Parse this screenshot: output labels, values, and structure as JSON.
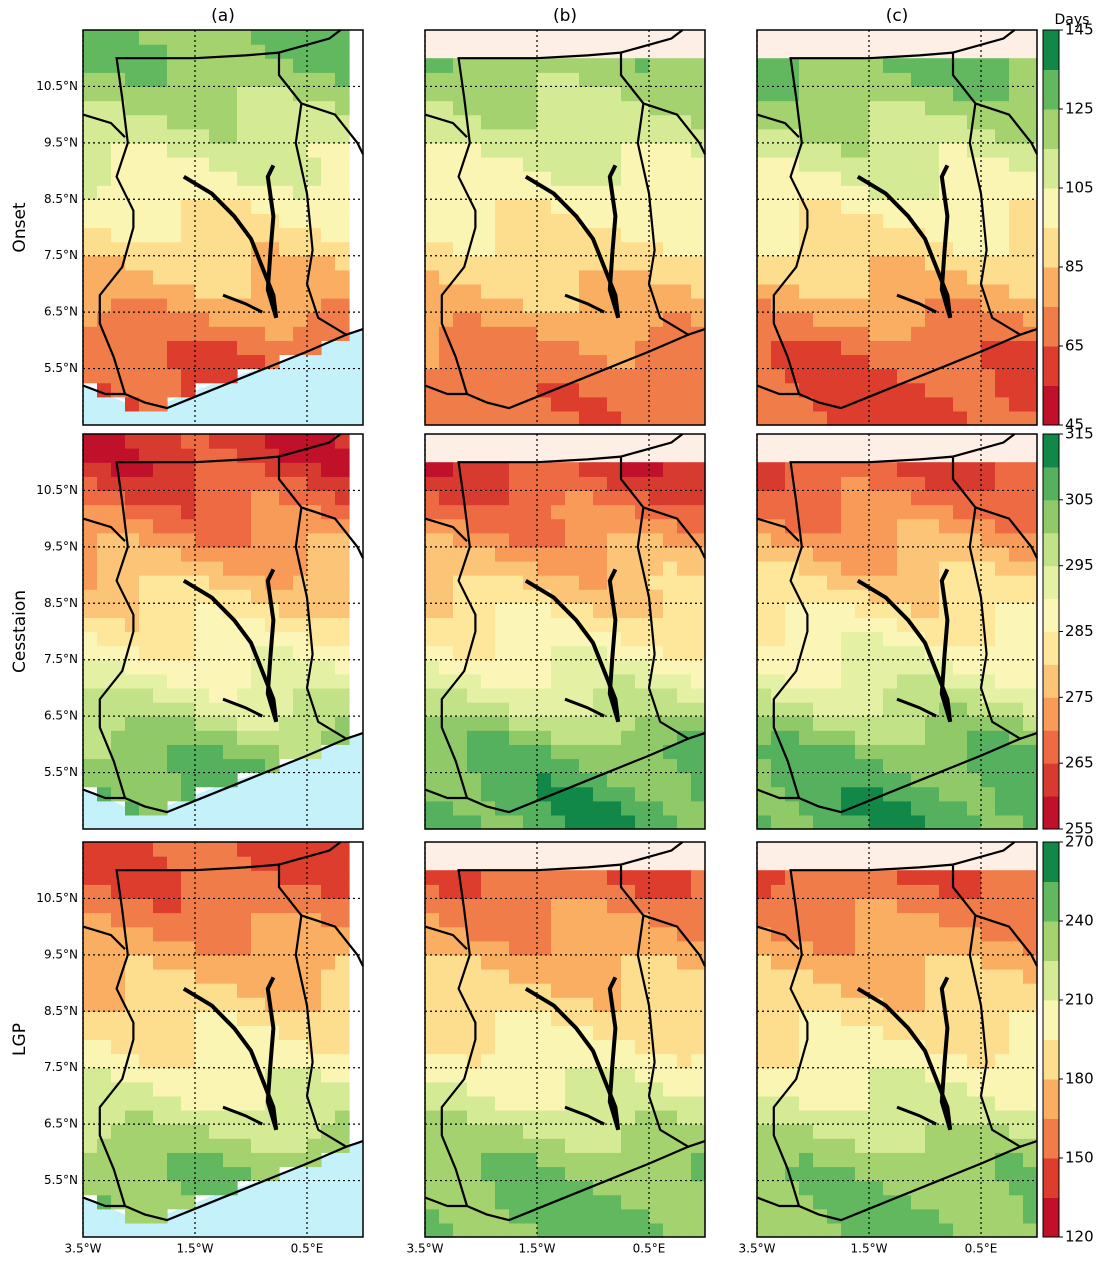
{
  "columns": [
    "(a)",
    "(b)",
    "(c)"
  ],
  "colorbar_label": "Days",
  "rows": [
    {
      "label": "Onset",
      "colorbar": {
        "lim": [
          45,
          145
        ],
        "ticks": [
          45,
          65,
          85,
          105,
          125,
          145
        ],
        "colors": [
          "#c0102a",
          "#dc3d2d",
          "#f07c4a",
          "#f9ae62",
          "#fdde8e",
          "#fbf5b4",
          "#d4ea94",
          "#a4d26e",
          "#62b85f",
          "#118847"
        ]
      }
    },
    {
      "label": "Cesstaion",
      "colorbar": {
        "lim": [
          255,
          315
        ],
        "ticks": [
          255,
          265,
          275,
          285,
          295,
          305,
          315
        ],
        "colors": [
          "#c0102a",
          "#d73a2e",
          "#ed6a43",
          "#f89a58",
          "#fcc477",
          "#fee79a",
          "#fbf6b8",
          "#e4f1a4",
          "#c1e287",
          "#90ca68",
          "#55b15d",
          "#118847"
        ]
      }
    },
    {
      "label": "LGP",
      "colorbar": {
        "lim": [
          120,
          270
        ],
        "ticks": [
          120,
          150,
          180,
          210,
          240,
          270
        ],
        "colors": [
          "#c0102a",
          "#dc3d2d",
          "#f07c4a",
          "#f9ae62",
          "#fdde8e",
          "#fbf5b4",
          "#d4ea94",
          "#a4d26e",
          "#62b85f",
          "#118847"
        ]
      }
    }
  ],
  "xlim": [
    -3.5,
    1.5
  ],
  "ylim": [
    4.5,
    11.5
  ],
  "xticks": [
    {
      "value": -3.5,
      "label": "3.5°W"
    },
    {
      "value": -1.5,
      "label": "1.5°W"
    },
    {
      "value": 0.5,
      "label": "0.5°E"
    }
  ],
  "yticks": [
    {
      "value": 5.5,
      "label": "5.5°N"
    },
    {
      "value": 6.5,
      "label": "6.5°N"
    },
    {
      "value": 7.5,
      "label": "7.5°N"
    },
    {
      "value": 8.5,
      "label": "8.5°N"
    },
    {
      "value": 9.5,
      "label": "9.5°N"
    },
    {
      "value": 10.5,
      "label": "10.5°N"
    }
  ]
}
